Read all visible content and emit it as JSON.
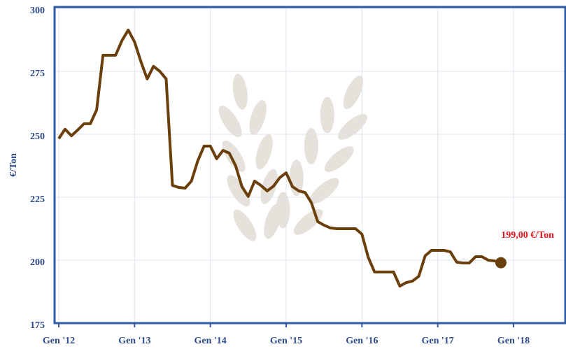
{
  "chart_data": {
    "type": "line",
    "y_label": "€/Ton",
    "annotation": "199,00 €/Ton",
    "categories": [
      "Gen '12",
      null,
      null,
      null,
      null,
      null,
      null,
      null,
      null,
      null,
      null,
      null,
      "Gen '13",
      null,
      null,
      null,
      null,
      null,
      null,
      null,
      null,
      null,
      null,
      null,
      "Gen '14",
      null,
      null,
      null,
      null,
      null,
      null,
      null,
      null,
      null,
      null,
      null,
      "Gen '15",
      null,
      null,
      null,
      null,
      null,
      null,
      null,
      null,
      null,
      null,
      null,
      "Gen '16",
      null,
      null,
      null,
      null,
      null,
      null,
      null,
      null,
      null,
      null,
      null,
      "Gen '17",
      null,
      null,
      null,
      null,
      null,
      null,
      null,
      null,
      null,
      null,
      null,
      "Gen '18"
    ],
    "series": [
      {
        "color": "#6b3f0c",
        "values": [
          248.3,
          252,
          249.4,
          251.7,
          254.2,
          254.2,
          259.7,
          281.4,
          281.4,
          281.4,
          287.2,
          291.4,
          286.7,
          278.9,
          272,
          277,
          275,
          272,
          229.7,
          228.9,
          228.6,
          231.4,
          239.4,
          245.3,
          245.3,
          240.3,
          243.6,
          242.5,
          237.5,
          229.2,
          225.3,
          231.4,
          229.7,
          227.5,
          229.4,
          232.8,
          234.7,
          229.2,
          227.5,
          226.9,
          222.8,
          215.3,
          213.9,
          212.8,
          212.5,
          212.5,
          212.5,
          212.5,
          210.3,
          201.1,
          195.3,
          195.3,
          195.3,
          195.3,
          189.7,
          191.1,
          191.7,
          193.6,
          201.7,
          203.9,
          203.9,
          203.9,
          203.3,
          199.2,
          198.9,
          198.9,
          201.4,
          201.4,
          200,
          199.7,
          199,
          null,
          null
        ]
      }
    ],
    "ylim": [
      175,
      300
    ],
    "yticks": [
      175,
      200,
      225,
      250,
      275,
      300
    ],
    "grid": true,
    "annotation_color": "#e8141c"
  }
}
